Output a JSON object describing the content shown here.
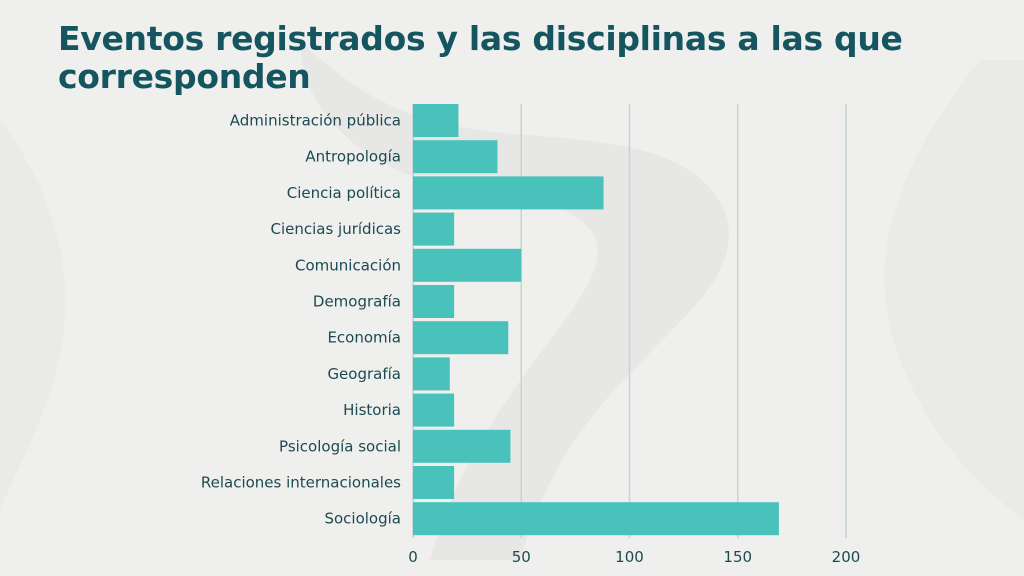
{
  "title": "Eventos registrados y las disciplinas a las que corresponden",
  "colors": {
    "bar": "#48c2ba",
    "title": "#145560",
    "text": "#1d4a52",
    "grid": "#c4d4d0",
    "background": "#efefed"
  },
  "chart_data": {
    "type": "bar",
    "orientation": "horizontal",
    "title": "Eventos registrados y las disciplinas a las que corresponden",
    "categories": [
      "Administración pública",
      "Antropología",
      "Ciencia política",
      "Ciencias jurídicas",
      "Comunicación",
      "Demografía",
      "Economía",
      "Geografía",
      "Historia",
      "Psicología social",
      "Relaciones internacionales",
      "Sociología"
    ],
    "values": [
      21,
      39,
      88,
      19,
      50,
      19,
      44,
      17,
      19,
      45,
      19,
      169
    ],
    "xlim": [
      0,
      200
    ],
    "xticks": [
      "0",
      "50",
      "100",
      "150",
      "200"
    ],
    "xtick_values": [
      0,
      50,
      100,
      150,
      200
    ],
    "grid": true,
    "legend": "none"
  }
}
